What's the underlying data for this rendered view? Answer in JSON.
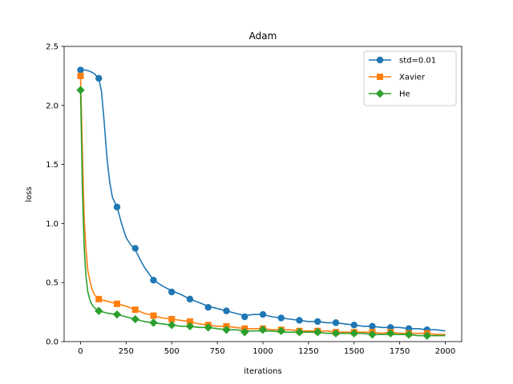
{
  "chart_data": {
    "type": "line",
    "title": "Adam",
    "xlabel": "iterations",
    "ylabel": "loss",
    "xlim": [
      -90,
      2090
    ],
    "ylim": [
      0,
      2.5
    ],
    "xticks": [
      0,
      250,
      500,
      750,
      1000,
      1250,
      1500,
      1750,
      2000
    ],
    "yticks": [
      0.0,
      0.5,
      1.0,
      1.5,
      2.0,
      2.5
    ],
    "xtick_labels": [
      "0",
      "250",
      "500",
      "750",
      "1000",
      "1250",
      "1500",
      "1750",
      "2000"
    ],
    "ytick_labels": [
      "0.0",
      "0.5",
      "1.0",
      "1.5",
      "2.0",
      "2.5"
    ],
    "grid": false,
    "legend_position": "top-right",
    "series": [
      {
        "name": "std=0.01",
        "color": "#1f77b4",
        "marker": "circle",
        "x": [
          0,
          25,
          50,
          75,
          100,
          115,
          130,
          145,
          160,
          175,
          200,
          225,
          250,
          275,
          300,
          325,
          350,
          400,
          450,
          500,
          550,
          600,
          650,
          700,
          750,
          800,
          850,
          900,
          950,
          1000,
          1050,
          1100,
          1150,
          1200,
          1250,
          1300,
          1350,
          1400,
          1450,
          1500,
          1550,
          1600,
          1650,
          1700,
          1750,
          1800,
          1850,
          1900,
          1950,
          2000
        ],
        "y": [
          2.3,
          2.3,
          2.29,
          2.27,
          2.23,
          2.12,
          1.85,
          1.55,
          1.35,
          1.22,
          1.14,
          1.0,
          0.88,
          0.82,
          0.78,
          0.7,
          0.63,
          0.52,
          0.47,
          0.43,
          0.4,
          0.36,
          0.33,
          0.3,
          0.28,
          0.26,
          0.24,
          0.22,
          0.23,
          0.23,
          0.21,
          0.2,
          0.19,
          0.18,
          0.17,
          0.17,
          0.16,
          0.16,
          0.15,
          0.14,
          0.13,
          0.13,
          0.12,
          0.12,
          0.12,
          0.11,
          0.11,
          0.1,
          0.1,
          0.09
        ],
        "marker_x": [
          0,
          100,
          200,
          300,
          400,
          500,
          600,
          700,
          800,
          900,
          1000,
          1100,
          1200,
          1300,
          1400,
          1500,
          1600,
          1700,
          1800,
          1900
        ],
        "marker_y": [
          2.3,
          2.23,
          1.14,
          0.79,
          0.52,
          0.42,
          0.36,
          0.29,
          0.26,
          0.21,
          0.23,
          0.2,
          0.18,
          0.17,
          0.16,
          0.14,
          0.13,
          0.12,
          0.11,
          0.1
        ]
      },
      {
        "name": "Xavier",
        "color": "#ff7f0e",
        "marker": "square",
        "x": [
          0,
          10,
          20,
          30,
          40,
          50,
          60,
          75,
          100,
          150,
          200,
          250,
          300,
          350,
          400,
          450,
          500,
          550,
          600,
          650,
          700,
          750,
          800,
          850,
          900,
          950,
          1000,
          1050,
          1100,
          1150,
          1200,
          1250,
          1300,
          1350,
          1400,
          1450,
          1500,
          1550,
          1600,
          1650,
          1700,
          1750,
          1800,
          1850,
          1900,
          1950,
          2000
        ],
        "y": [
          2.25,
          1.6,
          1.05,
          0.78,
          0.6,
          0.52,
          0.46,
          0.4,
          0.36,
          0.34,
          0.32,
          0.3,
          0.27,
          0.24,
          0.22,
          0.2,
          0.19,
          0.18,
          0.17,
          0.15,
          0.14,
          0.13,
          0.13,
          0.12,
          0.11,
          0.11,
          0.11,
          0.1,
          0.1,
          0.1,
          0.09,
          0.09,
          0.09,
          0.09,
          0.08,
          0.08,
          0.08,
          0.08,
          0.08,
          0.07,
          0.08,
          0.07,
          0.07,
          0.07,
          0.07,
          0.06,
          0.06
        ],
        "marker_x": [
          0,
          100,
          200,
          300,
          400,
          500,
          600,
          700,
          800,
          900,
          1000,
          1100,
          1200,
          1300,
          1400,
          1500,
          1600,
          1700,
          1800,
          1900
        ],
        "marker_y": [
          2.25,
          0.36,
          0.32,
          0.27,
          0.22,
          0.19,
          0.17,
          0.14,
          0.13,
          0.11,
          0.11,
          0.1,
          0.09,
          0.09,
          0.08,
          0.08,
          0.08,
          0.08,
          0.07,
          0.07
        ]
      },
      {
        "name": "He",
        "color": "#2ca02c",
        "marker": "diamond",
        "x": [
          0,
          10,
          20,
          30,
          40,
          50,
          60,
          75,
          100,
          150,
          200,
          250,
          300,
          350,
          400,
          450,
          500,
          550,
          600,
          650,
          700,
          750,
          800,
          850,
          900,
          950,
          1000,
          1050,
          1100,
          1150,
          1200,
          1250,
          1300,
          1350,
          1400,
          1450,
          1500,
          1550,
          1600,
          1650,
          1700,
          1750,
          1800,
          1850,
          1900,
          1950,
          2000
        ],
        "y": [
          2.13,
          1.3,
          0.8,
          0.55,
          0.42,
          0.36,
          0.32,
          0.29,
          0.26,
          0.24,
          0.23,
          0.21,
          0.19,
          0.17,
          0.16,
          0.15,
          0.14,
          0.13,
          0.13,
          0.12,
          0.12,
          0.11,
          0.1,
          0.1,
          0.09,
          0.09,
          0.09,
          0.09,
          0.08,
          0.08,
          0.08,
          0.08,
          0.08,
          0.07,
          0.07,
          0.07,
          0.07,
          0.07,
          0.06,
          0.06,
          0.06,
          0.06,
          0.06,
          0.05,
          0.05,
          0.05,
          0.05
        ],
        "marker_x": [
          0,
          100,
          200,
          300,
          400,
          500,
          600,
          700,
          800,
          900,
          1000,
          1100,
          1200,
          1300,
          1400,
          1500,
          1600,
          1700,
          1800,
          1900
        ],
        "marker_y": [
          2.13,
          0.26,
          0.23,
          0.19,
          0.16,
          0.14,
          0.13,
          0.12,
          0.1,
          0.08,
          0.1,
          0.09,
          0.08,
          0.08,
          0.07,
          0.07,
          0.06,
          0.07,
          0.06,
          0.05
        ]
      }
    ]
  }
}
